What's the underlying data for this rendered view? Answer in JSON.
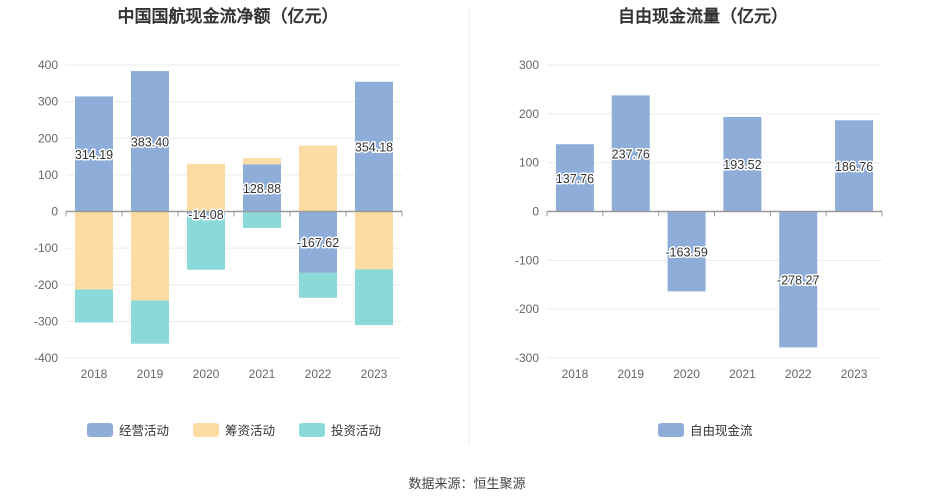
{
  "source": "数据来源：恒生聚源",
  "colors": {
    "operating": "#8eadd9",
    "financing": "#fddca3",
    "investing": "#8cd9d9",
    "fcf": "#8eadd9"
  },
  "chart_data": [
    {
      "type": "bar",
      "stacked": true,
      "title": "中国国航现金流净额（亿元）",
      "categories": [
        "2018",
        "2019",
        "2020",
        "2021",
        "2022",
        "2023"
      ],
      "ylim": [
        -400,
        400
      ],
      "yticks": [
        400,
        300,
        200,
        100,
        0,
        -100,
        -200,
        -300,
        -400
      ],
      "grid": true,
      "legend": "bottom",
      "series": [
        {
          "name": "经营活动",
          "values": [
            314.19,
            383.4,
            -14.08,
            128.88,
            -167.62,
            354.18
          ]
        },
        {
          "name": "筹资活动",
          "values": [
            -213,
            -243,
            130,
            17,
            180,
            -158
          ]
        },
        {
          "name": "投资活动",
          "values": [
            -90,
            -118,
            -145,
            -45,
            -68,
            -152
          ]
        }
      ],
      "data_labels": [
        "314.19",
        "383.40",
        "-14.08",
        "128.88",
        "-167.62",
        "354.18"
      ]
    },
    {
      "type": "bar",
      "title": "自由现金流量（亿元）",
      "categories": [
        "2018",
        "2019",
        "2020",
        "2021",
        "2022",
        "2023"
      ],
      "ylim": [
        -300,
        300
      ],
      "yticks": [
        300,
        200,
        100,
        0,
        -100,
        -200,
        -300
      ],
      "grid": true,
      "legend": "bottom",
      "series": [
        {
          "name": "自由现金流",
          "values": [
            137.76,
            237.76,
            -163.59,
            193.52,
            -278.27,
            186.76
          ]
        }
      ],
      "data_labels": [
        "137.76",
        "237.76",
        "-163.59",
        "193.52",
        "-278.27",
        "186.76"
      ]
    }
  ]
}
